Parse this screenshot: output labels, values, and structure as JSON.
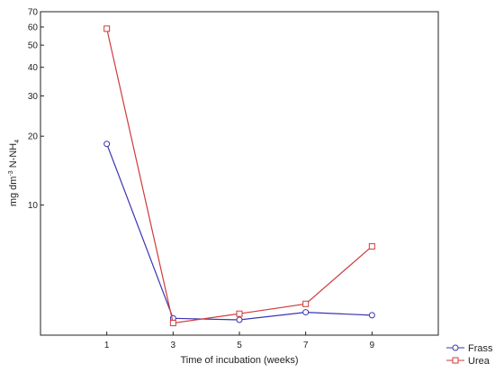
{
  "chart_data": {
    "type": "line",
    "x": [
      1,
      3,
      5,
      7,
      9
    ],
    "x_ticks": [
      "1",
      "3",
      "5",
      "7",
      "9"
    ],
    "xlim": [
      -1,
      11
    ],
    "xlabel": "Time of incubation (weeks)",
    "ylabel_main": "mg dm",
    "ylabel_sup": "-3",
    "ylabel_mid": " N-NH",
    "ylabel_sub": "4",
    "yscale": "log",
    "ylim": [
      2.7,
      70
    ],
    "y_ticks": [
      "70",
      "60",
      "50",
      "40",
      "30",
      "20",
      "10"
    ],
    "grid": false,
    "legend_position": "bottom-right",
    "series": [
      {
        "name": "Frass",
        "color": "#3a35b0",
        "marker": "circle",
        "values": [
          18.5,
          3.2,
          3.15,
          3.4,
          3.3
        ]
      },
      {
        "name": "Urea",
        "color": "#d03a3a",
        "marker": "square",
        "values": [
          59,
          3.05,
          3.35,
          3.7,
          6.6
        ]
      }
    ]
  }
}
